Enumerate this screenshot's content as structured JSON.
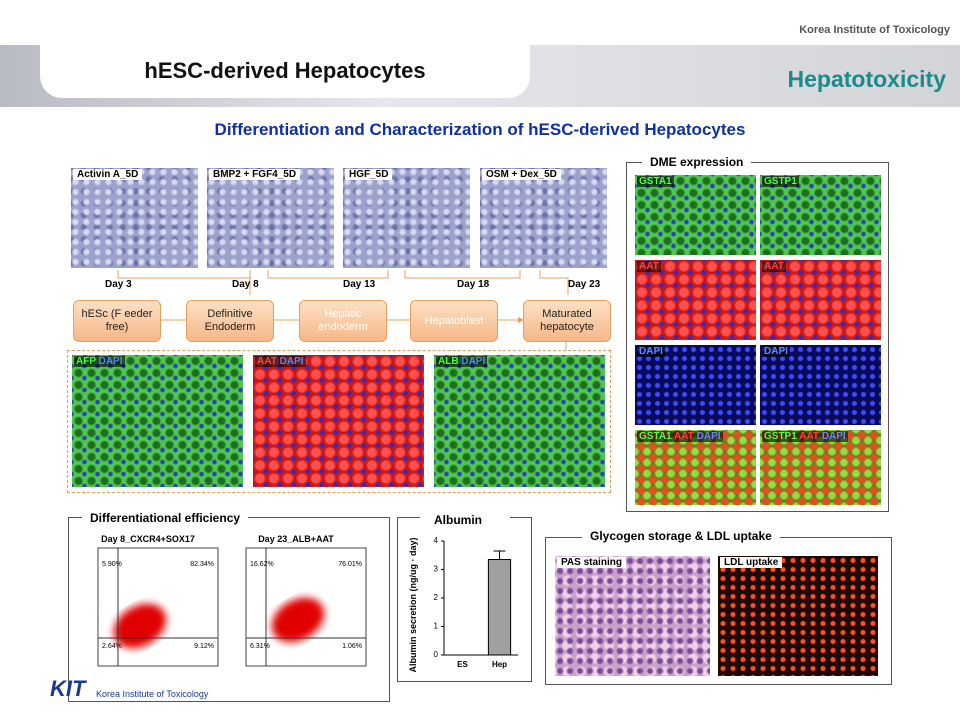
{
  "header": {
    "org": "Korea Institute of Toxicology",
    "title": "hESC-derived Hepatocytes",
    "section": "Hepatotoxicity"
  },
  "subtitle": "Differentiation and Characterization of hESC-derived Hepatocytes",
  "culture_images": [
    "Activin A_5D",
    "BMP2 + FGF4_5D",
    "HGF_5D",
    "OSM + Dex_5D"
  ],
  "days": [
    "Day 3",
    "Day 8",
    "Day 13",
    "Day 18",
    "Day 23"
  ],
  "steps": [
    "hESc (F eeder free)",
    "Definitive Endoderm",
    "Hepatic endoderm",
    "Hepatoblast",
    "Maturated hepatocyte"
  ],
  "stains": [
    [
      "AFP",
      "DAPI"
    ],
    [
      "AAT",
      "DAPI"
    ],
    [
      "ALB",
      "DAPI"
    ]
  ],
  "dme": {
    "title": "DME expression",
    "panels": [
      [
        "GSTA1"
      ],
      [
        "GSTP1"
      ],
      [
        "AAT"
      ],
      [
        "AAT"
      ],
      [
        "DAPI"
      ],
      [
        "DAPI"
      ],
      [
        "GSTA1",
        "AAT",
        "DAPI"
      ],
      [
        "GSTP1",
        "AAT",
        "DAPI"
      ]
    ]
  },
  "efficiency": {
    "title": "Differentiational efficiency",
    "plots": [
      {
        "title": "Day 8_CXCR4+SOX17",
        "quadrants": [
          "5.90%",
          "82.34%",
          "2.64%",
          "9.12%"
        ]
      },
      {
        "title": "Day 23_ALB+AAT",
        "quadrants": [
          "16.62%",
          "76.01%",
          "6.31%",
          "1.06%"
        ]
      }
    ]
  },
  "chart_data": {
    "type": "bar",
    "title": "Albumin",
    "y_label": "Albumin secretion (ng/ug · day)",
    "categories": [
      "ES",
      "Hep"
    ],
    "values": [
      0,
      3.35
    ],
    "errors": [
      0,
      0.3
    ],
    "color": "#a0a0a0",
    "ylim": [
      0,
      4
    ],
    "yticks": [
      0,
      1,
      2,
      3,
      4
    ]
  },
  "glycogen": {
    "title": "Glycogen storage & LDL uptake",
    "panels": [
      "PAS staining",
      "LDL uptake"
    ]
  },
  "footer": {
    "logo": "KIT",
    "org": "Korea Institute of Toxicology"
  }
}
